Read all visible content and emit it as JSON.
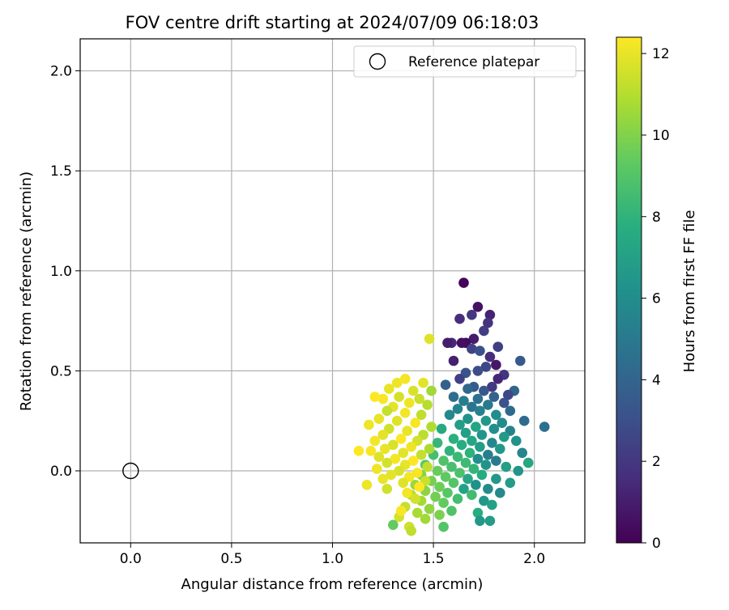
{
  "chart_data": {
    "type": "scatter",
    "title": "FOV centre drift starting at 2024/07/09 06:18:03",
    "xlabel": "Angular distance from reference (arcmin)",
    "ylabel": "Rotation from reference (arcmin)",
    "xlim": [
      -0.25,
      2.25
    ],
    "ylim": [
      -0.36,
      2.16
    ],
    "grid": true,
    "xticks": [
      0.0,
      0.5,
      1.0,
      1.5,
      2.0
    ],
    "xtick_labels": [
      "0.0",
      "0.5",
      "1.0",
      "1.5",
      "2.0"
    ],
    "yticks": [
      0.0,
      0.5,
      1.0,
      1.5,
      2.0
    ],
    "ytick_labels": [
      "0.0",
      "0.5",
      "1.0",
      "1.5",
      "2.0"
    ],
    "legend": {
      "position": "upper right",
      "entries": [
        "Reference platepar"
      ]
    },
    "reference_point": {
      "x": 0.0,
      "y": 0.0
    },
    "colorbar": {
      "label": "Hours from first FF file",
      "range": [
        0,
        12.4
      ],
      "ticks": [
        0,
        2,
        4,
        6,
        8,
        10,
        12
      ],
      "tick_labels": [
        "0",
        "2",
        "4",
        "6",
        "8",
        "10",
        "12"
      ],
      "colormap": "viridis"
    },
    "series": [
      {
        "color_by": "hours",
        "points": [
          [
            1.65,
            0.94,
            0.1
          ],
          [
            1.72,
            0.82,
            0.6
          ],
          [
            1.78,
            0.78,
            1.2
          ],
          [
            1.63,
            0.76,
            1.6
          ],
          [
            1.69,
            0.78,
            2.0
          ],
          [
            1.77,
            0.74,
            1.8
          ],
          [
            1.75,
            0.7,
            2.2
          ],
          [
            1.7,
            0.66,
            1.0
          ],
          [
            1.66,
            0.64,
            0.3
          ],
          [
            1.64,
            0.64,
            0.5
          ],
          [
            1.59,
            0.64,
            1.4
          ],
          [
            1.82,
            0.62,
            2.3
          ],
          [
            1.69,
            0.61,
            2.5
          ],
          [
            1.73,
            0.6,
            3.0
          ],
          [
            1.78,
            0.57,
            1.5
          ],
          [
            1.81,
            0.53,
            0.8
          ],
          [
            1.6,
            0.55,
            1.1
          ],
          [
            1.93,
            0.55,
            3.5
          ],
          [
            1.76,
            0.52,
            2.6
          ],
          [
            1.72,
            0.5,
            2.9
          ],
          [
            1.66,
            0.49,
            3.2
          ],
          [
            1.85,
            0.48,
            1.9
          ],
          [
            1.63,
            0.46,
            2.4
          ],
          [
            1.82,
            0.46,
            1.3
          ],
          [
            1.56,
            0.43,
            3.8
          ],
          [
            1.7,
            0.42,
            3.6
          ],
          [
            1.79,
            0.42,
            2.1
          ],
          [
            1.67,
            0.41,
            4.1
          ],
          [
            1.75,
            0.4,
            3.4
          ],
          [
            1.9,
            0.4,
            4.0
          ],
          [
            1.87,
            0.38,
            2.7
          ],
          [
            1.8,
            0.37,
            3.9
          ],
          [
            1.6,
            0.37,
            4.4
          ],
          [
            1.72,
            0.36,
            4.6
          ],
          [
            1.65,
            0.35,
            5.2
          ],
          [
            1.85,
            0.34,
            3.1
          ],
          [
            1.77,
            0.33,
            5.0
          ],
          [
            1.69,
            0.32,
            4.8
          ],
          [
            1.62,
            0.31,
            5.6
          ],
          [
            1.88,
            0.3,
            4.2
          ],
          [
            1.73,
            0.3,
            5.4
          ],
          [
            1.81,
            0.28,
            6.0
          ],
          [
            1.58,
            0.28,
            5.8
          ],
          [
            1.95,
            0.25,
            4.3
          ],
          [
            1.67,
            0.26,
            6.3
          ],
          [
            1.76,
            0.25,
            6.6
          ],
          [
            1.84,
            0.24,
            5.9
          ],
          [
            2.05,
            0.22,
            4.5
          ],
          [
            1.63,
            0.23,
            6.9
          ],
          [
            1.71,
            0.22,
            7.2
          ],
          [
            1.8,
            0.21,
            6.1
          ],
          [
            1.88,
            0.2,
            5.5
          ],
          [
            1.54,
            0.21,
            7.5
          ],
          [
            1.66,
            0.19,
            7.0
          ],
          [
            1.74,
            0.18,
            6.4
          ],
          [
            1.85,
            0.17,
            6.7
          ],
          [
            1.6,
            0.16,
            7.8
          ],
          [
            1.69,
            0.15,
            7.4
          ],
          [
            1.79,
            0.14,
            5.7
          ],
          [
            1.91,
            0.15,
            6.2
          ],
          [
            1.52,
            0.14,
            8.2
          ],
          [
            1.64,
            0.13,
            7.7
          ],
          [
            1.73,
            0.12,
            6.8
          ],
          [
            1.83,
            0.11,
            6.5
          ],
          [
            1.58,
            0.1,
            8.0
          ],
          [
            1.68,
            0.09,
            7.9
          ],
          [
            1.77,
            0.08,
            5.3
          ],
          [
            1.94,
            0.09,
            5.6
          ],
          [
            1.5,
            0.08,
            8.6
          ],
          [
            1.62,
            0.07,
            8.3
          ],
          [
            1.72,
            0.06,
            6.0
          ],
          [
            1.81,
            0.05,
            5.1
          ],
          [
            1.55,
            0.05,
            8.9
          ],
          [
            1.66,
            0.04,
            8.4
          ],
          [
            1.76,
            0.03,
            6.3
          ],
          [
            1.97,
            0.04,
            7.3
          ],
          [
            1.46,
            0.03,
            9.2
          ],
          [
            1.59,
            0.02,
            8.7
          ],
          [
            1.7,
            0.01,
            8.1
          ],
          [
            1.86,
            0.02,
            6.9
          ],
          [
            1.52,
            0.0,
            9.5
          ],
          [
            1.63,
            -0.01,
            8.8
          ],
          [
            1.74,
            -0.02,
            7.6
          ],
          [
            1.92,
            0.0,
            6.4
          ],
          [
            1.44,
            -0.02,
            10.0
          ],
          [
            1.56,
            -0.03,
            9.3
          ],
          [
            1.67,
            -0.04,
            7.4
          ],
          [
            1.81,
            -0.04,
            6.6
          ],
          [
            1.49,
            -0.05,
            9.8
          ],
          [
            1.6,
            -0.06,
            9.0
          ],
          [
            1.71,
            -0.07,
            6.2
          ],
          [
            1.88,
            -0.06,
            6.8
          ],
          [
            1.41,
            -0.07,
            10.5
          ],
          [
            1.53,
            -0.08,
            9.6
          ],
          [
            1.65,
            -0.09,
            7.1
          ],
          [
            1.77,
            -0.09,
            5.9
          ],
          [
            1.46,
            -0.1,
            10.2
          ],
          [
            1.57,
            -0.11,
            9.1
          ],
          [
            1.69,
            -0.12,
            8.5
          ],
          [
            1.83,
            -0.11,
            5.8
          ],
          [
            1.39,
            -0.12,
            11.0
          ],
          [
            1.51,
            -0.13,
            9.7
          ],
          [
            1.62,
            -0.14,
            8.6
          ],
          [
            1.75,
            -0.15,
            6.5
          ],
          [
            1.44,
            -0.15,
            10.7
          ],
          [
            1.55,
            -0.16,
            9.4
          ],
          [
            1.79,
            -0.17,
            7.0
          ],
          [
            1.36,
            -0.18,
            11.3
          ],
          [
            1.48,
            -0.19,
            10.3
          ],
          [
            1.59,
            -0.2,
            8.9
          ],
          [
            1.72,
            -0.21,
            7.7
          ],
          [
            1.42,
            -0.21,
            10.8
          ],
          [
            1.53,
            -0.22,
            9.9
          ],
          [
            1.33,
            -0.23,
            11.6
          ],
          [
            1.46,
            -0.24,
            10.6
          ],
          [
            1.73,
            -0.25,
            6.6
          ],
          [
            1.78,
            -0.25,
            6.8
          ],
          [
            1.3,
            -0.27,
            9.4
          ],
          [
            1.38,
            -0.28,
            11.5
          ],
          [
            1.55,
            -0.28,
            9.0
          ],
          [
            1.48,
            0.66,
            11.8
          ],
          [
            1.45,
            0.44,
            11.9
          ],
          [
            1.32,
            0.44,
            12.1
          ],
          [
            1.36,
            0.46,
            12.2
          ],
          [
            1.28,
            0.41,
            12.0
          ],
          [
            1.4,
            0.4,
            11.7
          ],
          [
            1.49,
            0.4,
            10.6
          ],
          [
            1.25,
            0.36,
            12.3
          ],
          [
            1.33,
            0.37,
            11.6
          ],
          [
            1.21,
            0.37,
            12.4
          ],
          [
            1.43,
            0.36,
            11.4
          ],
          [
            1.38,
            0.34,
            12.1
          ],
          [
            1.3,
            0.32,
            11.9
          ],
          [
            1.47,
            0.33,
            11.0
          ],
          [
            1.27,
            0.3,
            11.3
          ],
          [
            1.36,
            0.29,
            12.2
          ],
          [
            1.44,
            0.28,
            11.2
          ],
          [
            1.23,
            0.26,
            12.0
          ],
          [
            1.32,
            0.25,
            11.8
          ],
          [
            1.41,
            0.24,
            12.3
          ],
          [
            1.18,
            0.23,
            12.1
          ],
          [
            1.49,
            0.22,
            10.9
          ],
          [
            1.28,
            0.21,
            11.5
          ],
          [
            1.37,
            0.2,
            12.0
          ],
          [
            1.25,
            0.18,
            11.9
          ],
          [
            1.45,
            0.18,
            11.1
          ],
          [
            1.34,
            0.16,
            12.4
          ],
          [
            1.21,
            0.15,
            12.2
          ],
          [
            1.42,
            0.15,
            11.6
          ],
          [
            1.3,
            0.13,
            11.7
          ],
          [
            1.39,
            0.12,
            12.1
          ],
          [
            1.26,
            0.11,
            12.0
          ],
          [
            1.48,
            0.11,
            10.8
          ],
          [
            1.19,
            0.1,
            12.3
          ],
          [
            1.35,
            0.09,
            11.9
          ],
          [
            1.44,
            0.08,
            11.3
          ],
          [
            1.23,
            0.07,
            11.8
          ],
          [
            1.31,
            0.06,
            12.2
          ],
          [
            1.4,
            0.05,
            12.4
          ],
          [
            1.27,
            0.04,
            11.6
          ],
          [
            1.36,
            0.03,
            12.0
          ],
          [
            1.47,
            0.02,
            11.2
          ],
          [
            1.22,
            0.01,
            12.1
          ],
          [
            1.33,
            0.0,
            11.7
          ],
          [
            1.42,
            -0.01,
            12.3
          ],
          [
            1.29,
            -0.02,
            11.9
          ],
          [
            1.38,
            -0.03,
            12.2
          ],
          [
            1.25,
            -0.04,
            12.0
          ],
          [
            1.46,
            -0.05,
            11.4
          ],
          [
            1.35,
            -0.06,
            11.8
          ],
          [
            1.17,
            -0.07,
            12.1
          ],
          [
            1.43,
            -0.08,
            12.4
          ],
          [
            1.27,
            -0.09,
            11.5
          ],
          [
            1.37,
            -0.11,
            12.2
          ],
          [
            1.41,
            -0.14,
            11.6
          ],
          [
            1.34,
            -0.2,
            12.3
          ],
          [
            1.39,
            -0.3,
            11.2
          ],
          [
            1.13,
            0.1,
            12.4
          ],
          [
            1.57,
            0.64,
            1.0
          ]
        ]
      }
    ]
  }
}
